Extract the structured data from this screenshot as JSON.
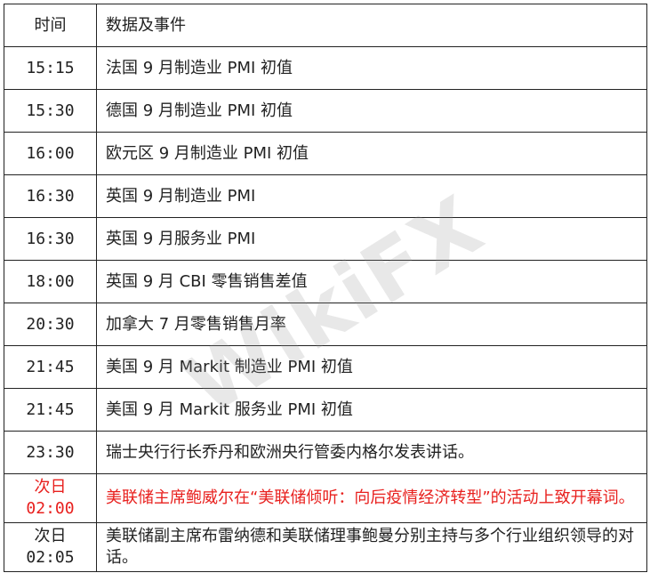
{
  "header": {
    "time": "时间",
    "event": "数据及事件"
  },
  "rows": [
    {
      "time": "15:15",
      "event": "法国 9 月制造业 PMI 初值"
    },
    {
      "time": "15:30",
      "event": "德国 9 月制造业 PMI 初值"
    },
    {
      "time": "16:00",
      "event": "欧元区 9 月制造业 PMI 初值"
    },
    {
      "time": "16:30",
      "event": "英国 9 月制造业 PMI"
    },
    {
      "time": "16:30",
      "event": "英国 9 月服务业 PMI"
    },
    {
      "time": "18:00",
      "event": "英国 9 月 CBI 零售销售差值"
    },
    {
      "time": "20:30",
      "event": "加拿大 7 月零售销售月率"
    },
    {
      "time": "21:45",
      "event": "美国 9 月 Markit 制造业 PMI 初值"
    },
    {
      "time": "21:45",
      "event": "美国 9 月 Markit 服务业 PMI 初值"
    },
    {
      "time": "23:30",
      "event": "瑞士央行行长乔丹和欧洲央行管委内格尔发表讲话。"
    },
    {
      "time": "次日 02:00",
      "event": "美联储主席鲍威尔在“美联储倾听：向后疫情经济转型”的活动上致开幕词。",
      "highlight_color": "#e8201e"
    },
    {
      "time": "次日 02:05",
      "event": "美联储副主席布雷纳德和美联储理事鲍曼分别主持与多个行业组织领导的对话。"
    }
  ],
  "watermark": "WikiFX"
}
